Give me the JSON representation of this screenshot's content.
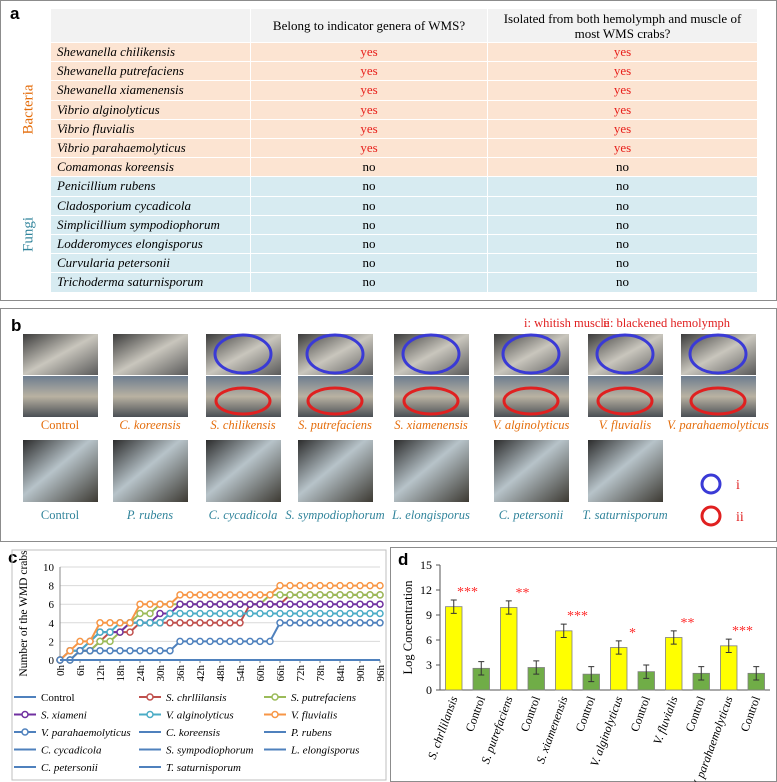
{
  "panel_a": {
    "label": "a",
    "columns": [
      "Belong to indicator genera of WMS?",
      "Isolated from both hemolymph and muscle of most WMS crabs?"
    ],
    "groups": [
      {
        "label": "Bacteria",
        "rows": [
          [
            "Shewanella chilikensis",
            "yes",
            "yes"
          ],
          [
            "Shewanella putrefaciens",
            "yes",
            "yes"
          ],
          [
            "Shewanella xiamenensis",
            "yes",
            "yes"
          ],
          [
            "Vibrio alginolyticus",
            "yes",
            "yes"
          ],
          [
            "Vibrio fluvialis",
            "yes",
            "yes"
          ],
          [
            "Vibrio parahaemolyticus",
            "yes",
            "yes"
          ],
          [
            "Comamonas koreensis",
            "no",
            "no"
          ]
        ]
      },
      {
        "label": "Fungi",
        "rows": [
          [
            "Penicillium rubens",
            "no",
            "no"
          ],
          [
            "Cladosporium cycadicola",
            "no",
            "no"
          ],
          [
            "Simplicillium sympodiophorum",
            "no",
            "no"
          ],
          [
            "Lodderomyces elongisporus",
            "no",
            "no"
          ],
          [
            "Curvularia petersonii",
            "no",
            "no"
          ],
          [
            "Trichoderma saturnisporum",
            "no",
            "no"
          ]
        ]
      }
    ]
  },
  "panel_b": {
    "label": "b",
    "legend": [
      "i: whitish muscle",
      "ii: blackened hemolymph"
    ],
    "markers": [
      "i",
      "ii"
    ],
    "bacteria_row": [
      "Control",
      "C. koreensis",
      "S. chilikensis",
      "S. putrefaciens",
      "S. xiamenensis",
      "V. alginolyticus",
      "V. fluvialis",
      "V. parahaemolyticus"
    ],
    "fungi_row": [
      "Control",
      "P. rubens",
      "C. cycadicola",
      "S. sympodiophorum",
      "L. elongisporus",
      "C. petersonii",
      "T. saturnisporum"
    ]
  },
  "chart_data": [
    {
      "type": "line",
      "panel": "c",
      "ylabel": "Number of the WMD crabs",
      "x": [
        0,
        3,
        6,
        9,
        12,
        15,
        18,
        21,
        24,
        27,
        30,
        33,
        36,
        39,
        42,
        45,
        48,
        51,
        54,
        57,
        60,
        63,
        66,
        69,
        72,
        75,
        78,
        81,
        84,
        87,
        90,
        93,
        96
      ],
      "xlim": [
        0,
        96
      ],
      "xticks": [
        {
          "value": 0,
          "label": "0h"
        },
        {
          "value": 6,
          "label": "6h"
        },
        {
          "value": 12,
          "label": "12h"
        },
        {
          "value": 18,
          "label": "18h"
        },
        {
          "value": 24,
          "label": "24h"
        },
        {
          "value": 30,
          "label": "30h"
        },
        {
          "value": 36,
          "label": "36h"
        },
        {
          "value": 42,
          "label": "42h"
        },
        {
          "value": 48,
          "label": "48h"
        },
        {
          "value": 54,
          "label": "54h"
        },
        {
          "value": 60,
          "label": "60h"
        },
        {
          "value": 66,
          "label": "66h"
        },
        {
          "value": 72,
          "label": "72h"
        },
        {
          "value": 78,
          "label": "78h"
        },
        {
          "value": 84,
          "label": "84h"
        },
        {
          "value": 90,
          "label": "90h"
        },
        {
          "value": 96,
          "label": "96h"
        }
      ],
      "ylim": [
        0,
        10
      ],
      "yticks": [
        0,
        2,
        4,
        6,
        8,
        10
      ],
      "series": [
        {
          "name": "Control",
          "color": "#4f81bd",
          "marker": false,
          "values": [
            0,
            0,
            0,
            0,
            0,
            0,
            0,
            0,
            0,
            0,
            0,
            0,
            0,
            0,
            0,
            0,
            0,
            0,
            0,
            0,
            0,
            0,
            0,
            0,
            0,
            0,
            0,
            0,
            0,
            0,
            0,
            0,
            0
          ]
        },
        {
          "name": "S. chrllilansis",
          "color": "#c0504d",
          "marker": true,
          "values": [
            0,
            0,
            1,
            1,
            2,
            3,
            3,
            3,
            4,
            4,
            4,
            4,
            4,
            4,
            4,
            4,
            4,
            4,
            4,
            6,
            6,
            6,
            6,
            7,
            7,
            7,
            7,
            7,
            7,
            7,
            7,
            7,
            7
          ]
        },
        {
          "name": "S. putrefaciens",
          "color": "#9bbb59",
          "marker": true,
          "values": [
            0,
            0,
            1,
            1,
            2,
            2,
            3,
            4,
            5,
            5,
            6,
            6,
            6,
            6,
            6,
            6,
            6,
            6,
            6,
            6,
            6,
            7,
            7,
            7,
            7,
            7,
            7,
            7,
            7,
            7,
            7,
            7,
            7
          ]
        },
        {
          "name": "S. xiameni",
          "color": "#7030a0",
          "marker": true,
          "values": [
            0,
            1,
            1,
            2,
            3,
            3,
            3,
            4,
            4,
            4,
            5,
            5,
            6,
            6,
            6,
            6,
            6,
            6,
            6,
            6,
            6,
            6,
            6,
            6,
            6,
            6,
            6,
            6,
            6,
            6,
            6,
            6,
            6
          ]
        },
        {
          "name": "V. alginolyticus",
          "color": "#4bacc6",
          "marker": true,
          "values": [
            0,
            1,
            1,
            2,
            3,
            3,
            4,
            4,
            4,
            4,
            4,
            5,
            5,
            5,
            5,
            5,
            5,
            5,
            5,
            5,
            5,
            5,
            5,
            5,
            5,
            5,
            5,
            5,
            5,
            5,
            5,
            5,
            5
          ]
        },
        {
          "name": "V. fluvialis",
          "color": "#f79646",
          "marker": true,
          "values": [
            0,
            1,
            2,
            2,
            4,
            4,
            4,
            4,
            6,
            6,
            6,
            6,
            7,
            7,
            7,
            7,
            7,
            7,
            7,
            7,
            7,
            7,
            8,
            8,
            8,
            8,
            8,
            8,
            8,
            8,
            8,
            8,
            8
          ]
        },
        {
          "name": "V. parahaemolyticus",
          "color": "#4f81bd",
          "marker": true,
          "values": [
            0,
            0,
            1,
            1,
            1,
            1,
            1,
            1,
            1,
            1,
            1,
            1,
            2,
            2,
            2,
            2,
            2,
            2,
            2,
            2,
            2,
            2,
            4,
            4,
            4,
            4,
            4,
            4,
            4,
            4,
            4,
            4,
            4
          ]
        },
        {
          "name": "C. koreensis",
          "color": "#4f81bd",
          "marker": false,
          "values": [
            0,
            0,
            0,
            0,
            0,
            0,
            0,
            0,
            0,
            0,
            0,
            0,
            0,
            0,
            0,
            0,
            0,
            0,
            0,
            0,
            0,
            0,
            0,
            0,
            0,
            0,
            0,
            0,
            0,
            0,
            0,
            0,
            0
          ]
        },
        {
          "name": "P. rubens",
          "color": "#4f81bd",
          "marker": false,
          "values": [
            0,
            0,
            0,
            0,
            0,
            0,
            0,
            0,
            0,
            0,
            0,
            0,
            0,
            0,
            0,
            0,
            0,
            0,
            0,
            0,
            0,
            0,
            0,
            0,
            0,
            0,
            0,
            0,
            0,
            0,
            0,
            0,
            0
          ]
        },
        {
          "name": "C. cycadicola",
          "color": "#4f81bd",
          "marker": false,
          "values": [
            0,
            0,
            0,
            0,
            0,
            0,
            0,
            0,
            0,
            0,
            0,
            0,
            0,
            0,
            0,
            0,
            0,
            0,
            0,
            0,
            0,
            0,
            0,
            0,
            0,
            0,
            0,
            0,
            0,
            0,
            0,
            0,
            0
          ]
        },
        {
          "name": "S. sympodiophorum",
          "color": "#4f81bd",
          "marker": false,
          "values": [
            0,
            0,
            0,
            0,
            0,
            0,
            0,
            0,
            0,
            0,
            0,
            0,
            0,
            0,
            0,
            0,
            0,
            0,
            0,
            0,
            0,
            0,
            0,
            0,
            0,
            0,
            0,
            0,
            0,
            0,
            0,
            0,
            0
          ]
        },
        {
          "name": "L. elongisporus",
          "color": "#4f81bd",
          "marker": false,
          "values": [
            0,
            0,
            0,
            0,
            0,
            0,
            0,
            0,
            0,
            0,
            0,
            0,
            0,
            0,
            0,
            0,
            0,
            0,
            0,
            0,
            0,
            0,
            0,
            0,
            0,
            0,
            0,
            0,
            0,
            0,
            0,
            0,
            0
          ]
        },
        {
          "name": "C. petersonii",
          "color": "#4f81bd",
          "marker": false,
          "values": [
            0,
            0,
            0,
            0,
            0,
            0,
            0,
            0,
            0,
            0,
            0,
            0,
            0,
            0,
            0,
            0,
            0,
            0,
            0,
            0,
            0,
            0,
            0,
            0,
            0,
            0,
            0,
            0,
            0,
            0,
            0,
            0,
            0
          ]
        },
        {
          "name": "T. saturnisporum",
          "color": "#4f81bd",
          "marker": false,
          "values": [
            0,
            0,
            0,
            0,
            0,
            0,
            0,
            0,
            0,
            0,
            0,
            0,
            0,
            0,
            0,
            0,
            0,
            0,
            0,
            0,
            0,
            0,
            0,
            0,
            0,
            0,
            0,
            0,
            0,
            0,
            0,
            0,
            0
          ]
        }
      ]
    },
    {
      "type": "bar",
      "panel": "d",
      "ylabel": "Log Concentration",
      "categories": [
        "S. chrllilansis",
        "Control",
        "S. putrefaciens",
        "Control",
        "S. xiamenensis",
        "Control",
        "V. alginolyticus",
        "Control",
        "V. fluvialis",
        "Control",
        "V. parahaemolyticus",
        "Control"
      ],
      "values": [
        10,
        2.6,
        9.9,
        2.7,
        7.1,
        1.9,
        5.1,
        2.2,
        6.3,
        2.0,
        5.3,
        2.0
      ],
      "errors": [
        0.8,
        0.8,
        0.8,
        0.8,
        0.8,
        0.9,
        0.8,
        0.8,
        0.8,
        0.8,
        0.8,
        0.8
      ],
      "colors": [
        "#ffff00",
        "#70ad47",
        "#ffff00",
        "#70ad47",
        "#ffff00",
        "#70ad47",
        "#ffff00",
        "#70ad47",
        "#ffff00",
        "#70ad47",
        "#ffff00",
        "#70ad47"
      ],
      "annotations": [
        "***",
        "**",
        "***",
        "*",
        "**",
        "***"
      ],
      "ylim": [
        0,
        15
      ],
      "yticks": [
        0,
        3,
        6,
        9,
        12,
        15
      ]
    }
  ]
}
